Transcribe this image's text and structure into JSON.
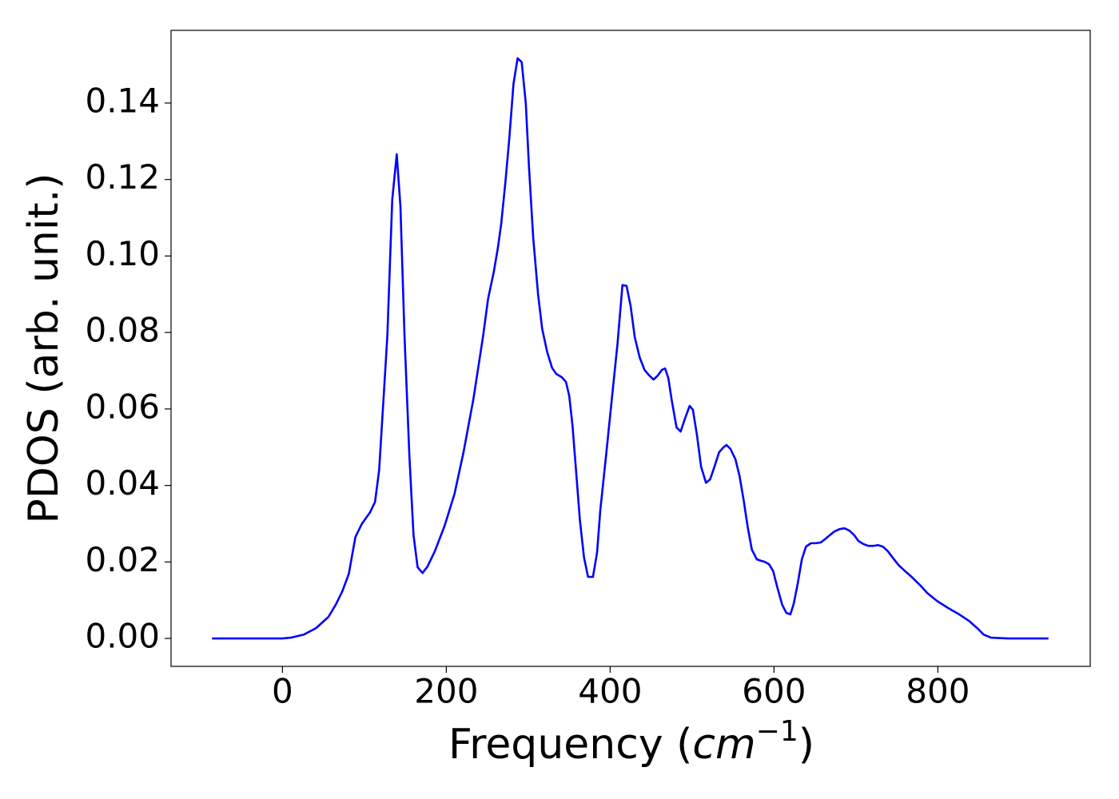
{
  "chart_data": {
    "type": "line",
    "xlabel": {
      "text": "Frequency (",
      "math": "cm",
      "sup": "−1",
      "close": ")"
    },
    "ylabel": "PDOS (arb. unit.)",
    "xlim": [
      -136,
      986
    ],
    "ylim": [
      -0.0073,
      0.159
    ],
    "xticks": [
      0,
      200,
      400,
      600,
      800
    ],
    "yticks": [
      {
        "value": 0,
        "label": "0.00"
      },
      {
        "value": 0.02,
        "label": "0.02"
      },
      {
        "value": 0.04,
        "label": "0.04"
      },
      {
        "value": 0.06,
        "label": "0.06"
      },
      {
        "value": 0.08,
        "label": "0.08"
      },
      {
        "value": 0.1,
        "label": "0.10"
      },
      {
        "value": 0.12,
        "label": "0.12"
      },
      {
        "value": 0.14,
        "label": "0.14"
      }
    ],
    "grid": false,
    "series": [
      {
        "color": "#0000ff",
        "x": [
          -86,
          0,
          10,
          26,
          41,
          56,
          65,
          73,
          81,
          89,
          97,
          107,
          113,
          118,
          123,
          128,
          134,
          139.5,
          144,
          149,
          155,
          160,
          165,
          171,
          177,
          186,
          198,
          210,
          221,
          233,
          245,
          251,
          258,
          263,
          267,
          272,
          277,
          282,
          287,
          292,
          297,
          301,
          306,
          312,
          317,
          323,
          329,
          334,
          341,
          346,
          350,
          354,
          358,
          363,
          368,
          373,
          379,
          384,
          388,
          395,
          403,
          409,
          415,
          420,
          425,
          430,
          436,
          442,
          448,
          453,
          458,
          463,
          467,
          471,
          475,
          481,
          486,
          491,
          497,
          501,
          506,
          511,
          517,
          522,
          527,
          533,
          538,
          542,
          547,
          553,
          558,
          563,
          568,
          573,
          579,
          584,
          588,
          594,
          599,
          604,
          610,
          615,
          620,
          624,
          629,
          634,
          639,
          645,
          651,
          657,
          662,
          668,
          674,
          680,
          686,
          692,
          698,
          703,
          709,
          715,
          721,
          727,
          733,
          739,
          745,
          752,
          760,
          768,
          778,
          787,
          799,
          813,
          826,
          838,
          848,
          856,
          865,
          885,
          935
        ],
        "values": [
          0,
          0,
          0.0002,
          0.001,
          0.0027,
          0.0056,
          0.0088,
          0.0123,
          0.0169,
          0.0265,
          0.03,
          0.033,
          0.0357,
          0.044,
          0.0614,
          0.079,
          0.1147,
          0.1266,
          0.113,
          0.079,
          0.0474,
          0.027,
          0.0186,
          0.0171,
          0.0188,
          0.0228,
          0.0295,
          0.0378,
          0.0487,
          0.0625,
          0.0792,
          0.0888,
          0.0959,
          0.1022,
          0.1084,
          0.119,
          0.131,
          0.145,
          0.1517,
          0.1507,
          0.14,
          0.123,
          0.105,
          0.09,
          0.081,
          0.075,
          0.0708,
          0.0692,
          0.0683,
          0.0671,
          0.0635,
          0.0558,
          0.0449,
          0.0311,
          0.0213,
          0.0161,
          0.0161,
          0.0224,
          0.0336,
          0.0478,
          0.0646,
          0.0771,
          0.0924,
          0.0922,
          0.0869,
          0.0788,
          0.0735,
          0.0702,
          0.0687,
          0.0677,
          0.0687,
          0.0702,
          0.0706,
          0.0681,
          0.0625,
          0.0552,
          0.0541,
          0.0573,
          0.0608,
          0.0598,
          0.0531,
          0.0449,
          0.0407,
          0.0416,
          0.0447,
          0.0487,
          0.0499,
          0.0506,
          0.0495,
          0.0468,
          0.0424,
          0.0361,
          0.029,
          0.0232,
          0.0207,
          0.0203,
          0.0201,
          0.0194,
          0.0176,
          0.0134,
          0.0088,
          0.0067,
          0.0063,
          0.009,
          0.0144,
          0.0207,
          0.024,
          0.0249,
          0.0249,
          0.0251,
          0.0259,
          0.027,
          0.028,
          0.0286,
          0.0288,
          0.0282,
          0.027,
          0.0255,
          0.0247,
          0.0242,
          0.0242,
          0.0244,
          0.024,
          0.0228,
          0.0211,
          0.0192,
          0.0176,
          0.0161,
          0.014,
          0.0119,
          0.0098,
          0.0079,
          0.0063,
          0.0046,
          0.0027,
          0.001,
          0.0002,
          0,
          0
        ]
      }
    ]
  }
}
